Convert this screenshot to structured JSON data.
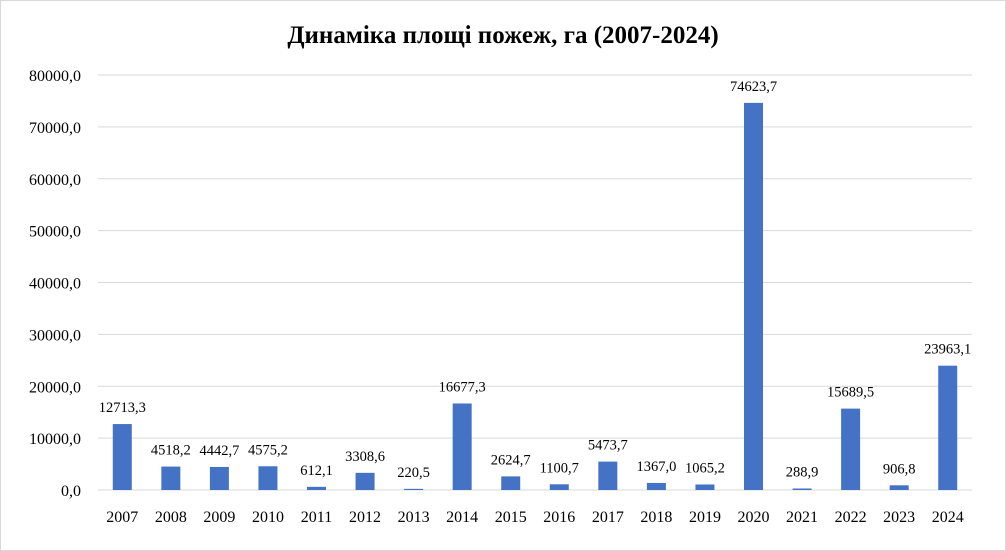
{
  "chart_data": {
    "type": "bar",
    "title": "Динаміка площі пожеж, га (2007-2024)",
    "xlabel": "",
    "ylabel": "",
    "categories": [
      "2007",
      "2008",
      "2009",
      "2010",
      "2011",
      "2012",
      "2013",
      "2014",
      "2015",
      "2016",
      "2017",
      "2018",
      "2019",
      "2020",
      "2021",
      "2022",
      "2023",
      "2024"
    ],
    "values": [
      12713.3,
      4518.2,
      4442.7,
      4575.2,
      612.1,
      3308.6,
      220.5,
      16677.3,
      2624.7,
      1100.7,
      5473.7,
      1367.0,
      1065.2,
      74623.7,
      288.9,
      15689.5,
      906.8,
      23963.1
    ],
    "data_labels": [
      "12713,3",
      "4518,2",
      "4442,7",
      "4575,2",
      "612,1",
      "3308,6",
      "220,5",
      "16677,3",
      "2624,7",
      "1100,7",
      "5473,7",
      "1367,0",
      "1065,2",
      "74623,7",
      "288,9",
      "15689,5",
      "906,8",
      "23963,1"
    ],
    "y_ticks": [
      "0,0",
      "10000,0",
      "20000,0",
      "30000,0",
      "40000,0",
      "50000,0",
      "60000,0",
      "70000,0",
      "80000,0"
    ],
    "ylim": [
      0,
      80000
    ],
    "grid": true,
    "legend": "none",
    "colors": {
      "bar": "#4472c4",
      "grid": "#d9d9d9"
    }
  }
}
